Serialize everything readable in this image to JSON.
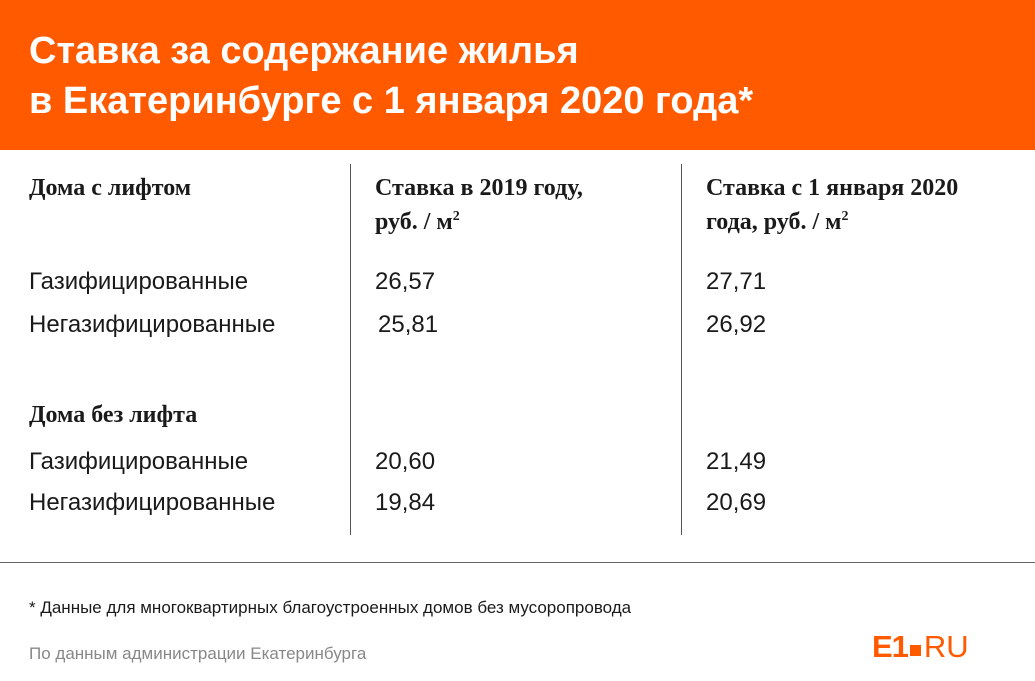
{
  "header": {
    "title_line1": "Ставка за содержание жилья",
    "title_line2": "в Екатеринбурге с 1 января 2020 года*"
  },
  "columns": {
    "col1_header": "Дома с лифтом",
    "col2_header_line1": "Ставка в 2019 году,",
    "col2_header_line2": "руб. / м",
    "col3_header_line1": "Ставка с 1 января 2020",
    "col3_header_line2": "года, руб. / м",
    "unit_superscript": "2"
  },
  "section_with_lift": {
    "rows": [
      {
        "label": "Газифицированные",
        "rate_2019": "26,57",
        "rate_2020": "27,71"
      },
      {
        "label": "Негазифицированные",
        "rate_2019": "25,81",
        "rate_2020": "26,92"
      }
    ]
  },
  "section_without_lift": {
    "title": "Дома без лифта",
    "rows": [
      {
        "label": "Газифицированные",
        "rate_2019": "20,60",
        "rate_2020": "21,49"
      },
      {
        "label": "Негазифицированные",
        "rate_2019": "19,84",
        "rate_2020": "20,69"
      }
    ]
  },
  "footer": {
    "footnote": "* Данные для многоквартирных благоустроенных домов без мусоропровода",
    "source": "По данным администрации Екатеринбурга",
    "logo_part1": "E1",
    "logo_part2": "RU"
  },
  "colors": {
    "brand_orange": "#ff5a00",
    "text": "#1a1a1a",
    "muted": "#888888"
  }
}
